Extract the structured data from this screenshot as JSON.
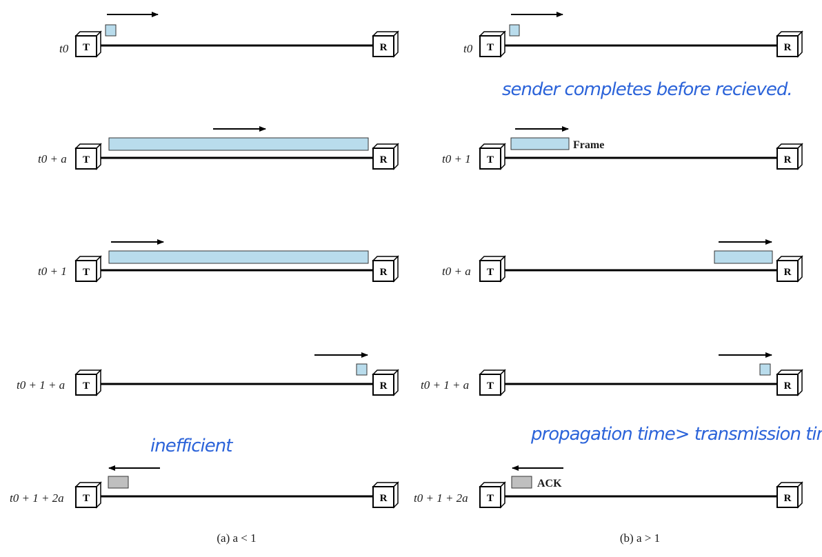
{
  "node_labels": {
    "transmitter": "T",
    "receiver": "R"
  },
  "colors": {
    "frame": "#b9dcec",
    "ack": "#bfbfbf",
    "line": "#000000",
    "annotation": "#2b63d9"
  },
  "panels": [
    {
      "caption": "(a) a < 1",
      "rows": [
        {
          "time_label": "t0"
        },
        {
          "time_label": "t0 + a"
        },
        {
          "time_label": "t0 + 1"
        },
        {
          "time_label": "t0 + 1 + a"
        },
        {
          "time_label": "t0 + 1 + 2a"
        }
      ],
      "annotation": "inefficient"
    },
    {
      "caption": "(b) a > 1",
      "rows": [
        {
          "time_label": "t0"
        },
        {
          "time_label": "t0 + 1",
          "note": "Frame"
        },
        {
          "time_label": "t0 + a"
        },
        {
          "time_label": "t0 + 1 + a"
        },
        {
          "time_label": "t0 + 1 + 2a",
          "note": "ACK"
        }
      ],
      "annotation_top": "sender completes before recieved.",
      "annotation": "propagation time> transmission time"
    }
  ]
}
